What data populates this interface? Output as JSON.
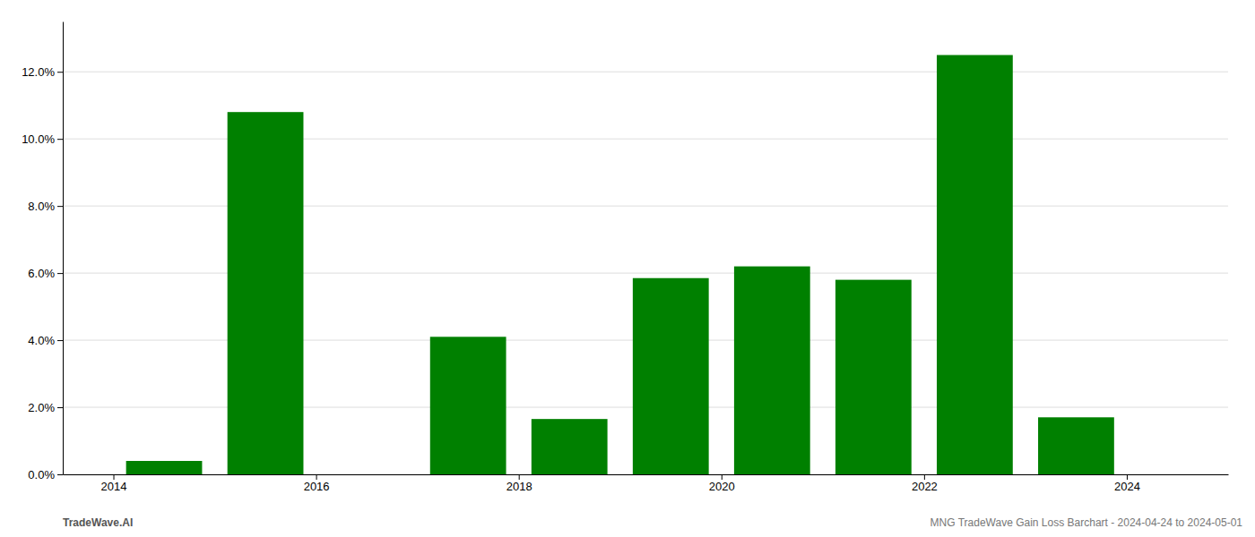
{
  "chart_data": {
    "type": "bar",
    "x": [
      2014.5,
      2015.5,
      2017.5,
      2018.5,
      2019.5,
      2020.5,
      2021.5,
      2022.5,
      2023.5
    ],
    "values": [
      0.004,
      0.108,
      0.041,
      0.0165,
      0.0585,
      0.062,
      0.058,
      0.125,
      0.017
    ],
    "color": "#008000",
    "xlim": [
      2013.5,
      2025.0
    ],
    "ylim": [
      0.0,
      0.135
    ],
    "xticks": [
      2014,
      2016,
      2018,
      2020,
      2022,
      2024
    ],
    "yticks": [
      {
        "value": 0.0,
        "label": "0.0%"
      },
      {
        "value": 0.02,
        "label": "2.0%"
      },
      {
        "value": 0.04,
        "label": "4.0%"
      },
      {
        "value": 0.06,
        "label": "6.0%"
      },
      {
        "value": 0.08,
        "label": "8.0%"
      },
      {
        "value": 0.1,
        "label": "10.0%"
      },
      {
        "value": 0.12,
        "label": "12.0%"
      }
    ],
    "grid": "y",
    "annotations": [
      "TradeWave.AI",
      "MNG TradeWave Gain Loss Barchart - 2024-04-24 to 2024-05-01"
    ]
  }
}
